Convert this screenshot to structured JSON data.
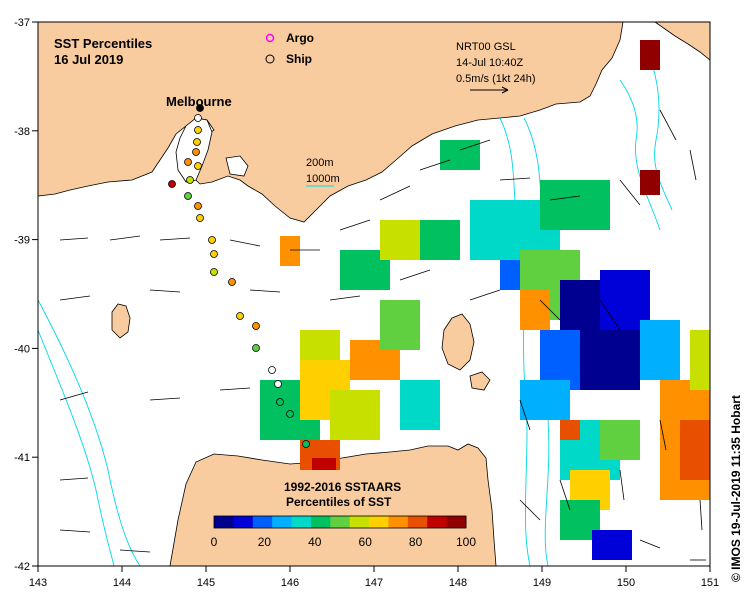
{
  "title": {
    "line1": "SST Percentiles",
    "line2": "16 Jul 2019"
  },
  "legend_points": {
    "argo_label": "Argo",
    "ship_label": "Ship",
    "argo_color": "#ff00ff"
  },
  "current_info": {
    "line1": "NRT00 GSL",
    "line2": "14-Jul 10:40Z",
    "line3": "0.5m/s (1kt 24h)"
  },
  "contours": {
    "line1": "200m",
    "line2": "1000m",
    "color": "#00d8e8"
  },
  "place": {
    "melbourne": "Melbourne"
  },
  "colorbar": {
    "title1": "1992-2016 SSTAARS",
    "title2": "Percentiles of SST",
    "colors": [
      "#000090",
      "#0000d8",
      "#0060ff",
      "#00b0ff",
      "#00d8c8",
      "#00c060",
      "#60d040",
      "#c8e000",
      "#ffd000",
      "#ff9000",
      "#e85000",
      "#c00000",
      "#900000"
    ],
    "ticks": [
      "0",
      "20",
      "40",
      "60",
      "80",
      "100"
    ]
  },
  "axes": {
    "x_ticks": [
      "143",
      "144",
      "145",
      "146",
      "147",
      "148",
      "149",
      "150",
      "151"
    ],
    "y_ticks": [
      "-37",
      "-38",
      "-39",
      "-40",
      "-41",
      "-42"
    ]
  },
  "credit": "© IMOS 19-Jul-2019 11:35 Hobart",
  "palette": {
    "land": "#f9cca0",
    "ocean": "#ffffff",
    "coast": "#000000"
  }
}
